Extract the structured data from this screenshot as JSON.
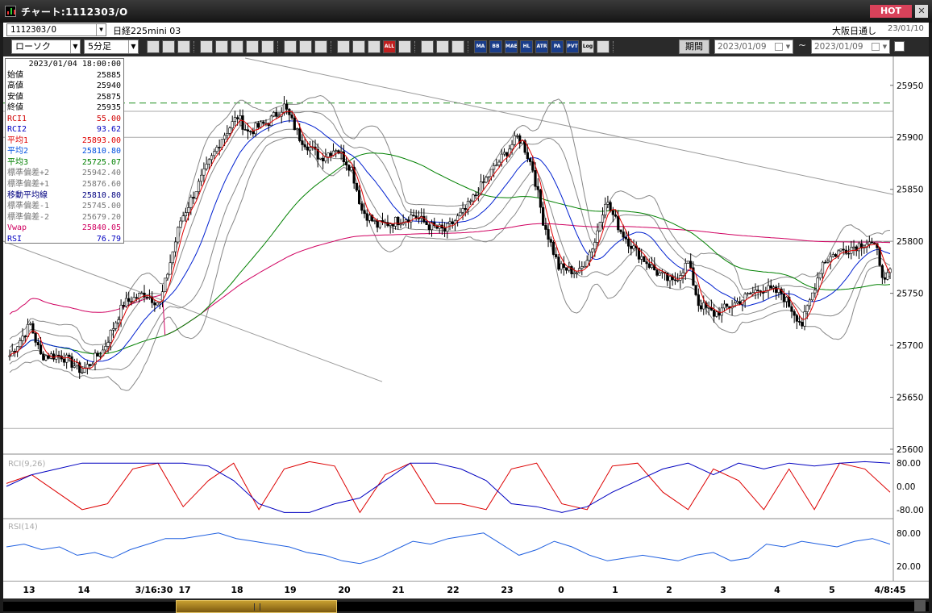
{
  "window": {
    "title": "チャート:1112303/O",
    "hot_label": "HOT",
    "close_label": "✕"
  },
  "info": {
    "symbol": "1112303/O",
    "name": "日経225mini 03",
    "market": "大阪日通し",
    "market_date": "23/01/10"
  },
  "toolbar": {
    "chart_type": "ローソク",
    "interval": "5分足",
    "period_label": "期間",
    "date_from": "2023/01/09",
    "date_to": "2023/01/09",
    "tilde": "~",
    "buttons": [
      "search",
      "zoom-out",
      "chart-a",
      "chart-b",
      "chart-c",
      "chart-d",
      "flag",
      "tool-a",
      "pen",
      "cursor",
      "undo",
      "candle-a",
      "candle-b",
      "candle-c",
      "all",
      "settings",
      "wrench",
      "palette",
      "lines",
      "MA",
      "BB",
      "MAE",
      "HL",
      "ATR",
      "PAR",
      "PVT",
      "Log",
      "export"
    ],
    "text_buttons": {
      "all": "ALL",
      "MA": "MA",
      "BB": "BB",
      "MAE": "MAE",
      "HL": "HL",
      "ATR": "ATR",
      "PAR": "PA R",
      "PVT": "PVT",
      "Log": "Log"
    }
  },
  "data_panel": {
    "datetime": "2023/01/04 18:00:00",
    "rows": [
      {
        "label": "始値",
        "value": "25885",
        "color": "#000000"
      },
      {
        "label": "高値",
        "value": "25940",
        "color": "#000000"
      },
      {
        "label": "安値",
        "value": "25875",
        "color": "#000000"
      },
      {
        "label": "終値",
        "value": "25935",
        "color": "#000000"
      },
      {
        "label": "RCI1",
        "value": "55.00",
        "color": "#d00000"
      },
      {
        "label": "RCI2",
        "value": "93.62",
        "color": "#0000c0"
      },
      {
        "label": "平均1",
        "value": "25893.00",
        "color": "#e00000"
      },
      {
        "label": "平均2",
        "value": "25810.80",
        "color": "#0050e0"
      },
      {
        "label": "平均3",
        "value": "25725.07",
        "color": "#008000"
      },
      {
        "label": "標準偏差+2",
        "value": "25942.40",
        "color": "#777777"
      },
      {
        "label": "標準偏差+1",
        "value": "25876.60",
        "color": "#777777"
      },
      {
        "label": "移動平均線",
        "value": "25810.80",
        "color": "#000080"
      },
      {
        "label": "標準偏差-1",
        "value": "25745.00",
        "color": "#777777"
      },
      {
        "label": "標準偏差-2",
        "value": "25679.20",
        "color": "#777777"
      },
      {
        "label": "Vwap",
        "value": "25840.05",
        "color": "#d00060"
      },
      {
        "label": "RSI",
        "value": "76.79",
        "color": "#0000c0"
      }
    ]
  },
  "chart_data": [
    {
      "type": "candlestick",
      "ylim": [
        25600,
        25970
      ],
      "yticks": [
        "25950",
        "25900",
        "25850",
        "25800",
        "25750",
        "25700",
        "25650",
        "25600"
      ],
      "ytick_values": [
        25950,
        25900,
        25850,
        25800,
        25750,
        25700,
        25650,
        25600
      ],
      "reference_level": 25933,
      "ohlc_keypoints": [
        [
          0,
          25690
        ],
        [
          8,
          25720
        ],
        [
          12,
          25690
        ],
        [
          20,
          25690
        ],
        [
          28,
          25675
        ],
        [
          36,
          25695
        ],
        [
          44,
          25740
        ],
        [
          52,
          25750
        ],
        [
          58,
          25740
        ],
        [
          66,
          25820
        ],
        [
          74,
          25860
        ],
        [
          82,
          25900
        ],
        [
          88,
          25920
        ],
        [
          92,
          25905
        ],
        [
          100,
          25915
        ],
        [
          106,
          25930
        ],
        [
          112,
          25900
        ],
        [
          120,
          25880
        ],
        [
          126,
          25890
        ],
        [
          132,
          25870
        ],
        [
          136,
          25830
        ],
        [
          142,
          25815
        ],
        [
          150,
          25820
        ],
        [
          156,
          25825
        ],
        [
          162,
          25815
        ],
        [
          168,
          25810
        ],
        [
          176,
          25830
        ],
        [
          184,
          25860
        ],
        [
          190,
          25880
        ],
        [
          196,
          25900
        ],
        [
          198,
          25895
        ],
        [
          202,
          25870
        ],
        [
          206,
          25820
        ],
        [
          212,
          25775
        ],
        [
          220,
          25770
        ],
        [
          226,
          25800
        ],
        [
          230,
          25840
        ],
        [
          236,
          25810
        ],
        [
          242,
          25790
        ],
        [
          250,
          25770
        ],
        [
          256,
          25760
        ],
        [
          262,
          25780
        ],
        [
          266,
          25740
        ],
        [
          272,
          25730
        ],
        [
          280,
          25740
        ],
        [
          290,
          25755
        ],
        [
          298,
          25750
        ],
        [
          306,
          25720
        ],
        [
          314,
          25780
        ],
        [
          320,
          25790
        ],
        [
          326,
          25795
        ],
        [
          332,
          25800
        ],
        [
          335,
          25790
        ],
        [
          338,
          25760
        ],
        [
          340,
          25770
        ]
      ],
      "x_ticks": [
        "13",
        "14",
        "3/16:30",
        "17",
        "18",
        "19",
        "20",
        "21",
        "22",
        "23",
        "0",
        "1",
        "2",
        "3",
        "4",
        "5",
        "4/8:45"
      ]
    },
    {
      "type": "line",
      "title": "RCI(9,26)",
      "ylim": [
        -100,
        100
      ],
      "yticks": [
        "80.00",
        "0.00",
        "-80.00"
      ],
      "ytick_values": [
        80,
        0,
        -80
      ],
      "series": [
        {
          "color": "#dd0000",
          "values": [
            10,
            40,
            -20,
            -80,
            -60,
            60,
            80,
            -70,
            20,
            80,
            -80,
            60,
            85,
            70,
            -90,
            40,
            80,
            -60,
            -60,
            -80,
            60,
            80,
            -60,
            -80,
            70,
            80,
            -20,
            -80,
            60,
            20,
            -80,
            60,
            -80,
            80,
            60,
            -20
          ]
        },
        {
          "color": "#0000c0",
          "values": [
            0,
            40,
            60,
            80,
            80,
            80,
            80,
            80,
            70,
            20,
            -60,
            -90,
            -90,
            -60,
            -40,
            20,
            80,
            80,
            60,
            20,
            -60,
            -70,
            -90,
            -70,
            -20,
            20,
            60,
            80,
            40,
            80,
            60,
            80,
            70,
            80,
            85,
            80
          ]
        }
      ]
    },
    {
      "type": "line",
      "title": "RSI(14)",
      "ylim": [
        0,
        100
      ],
      "yticks": [
        "80.00",
        "20.00"
      ],
      "ytick_values": [
        80,
        20
      ],
      "series": [
        {
          "color": "#2060e0",
          "values": [
            55,
            60,
            50,
            55,
            40,
            45,
            35,
            50,
            60,
            70,
            70,
            75,
            80,
            70,
            65,
            60,
            55,
            45,
            40,
            30,
            25,
            35,
            50,
            65,
            60,
            70,
            75,
            80,
            60,
            40,
            50,
            65,
            55,
            40,
            30,
            35,
            40,
            35,
            30,
            40,
            45,
            30,
            35,
            60,
            55,
            65,
            60,
            55,
            65,
            70,
            60
          ]
        }
      ]
    }
  ]
}
